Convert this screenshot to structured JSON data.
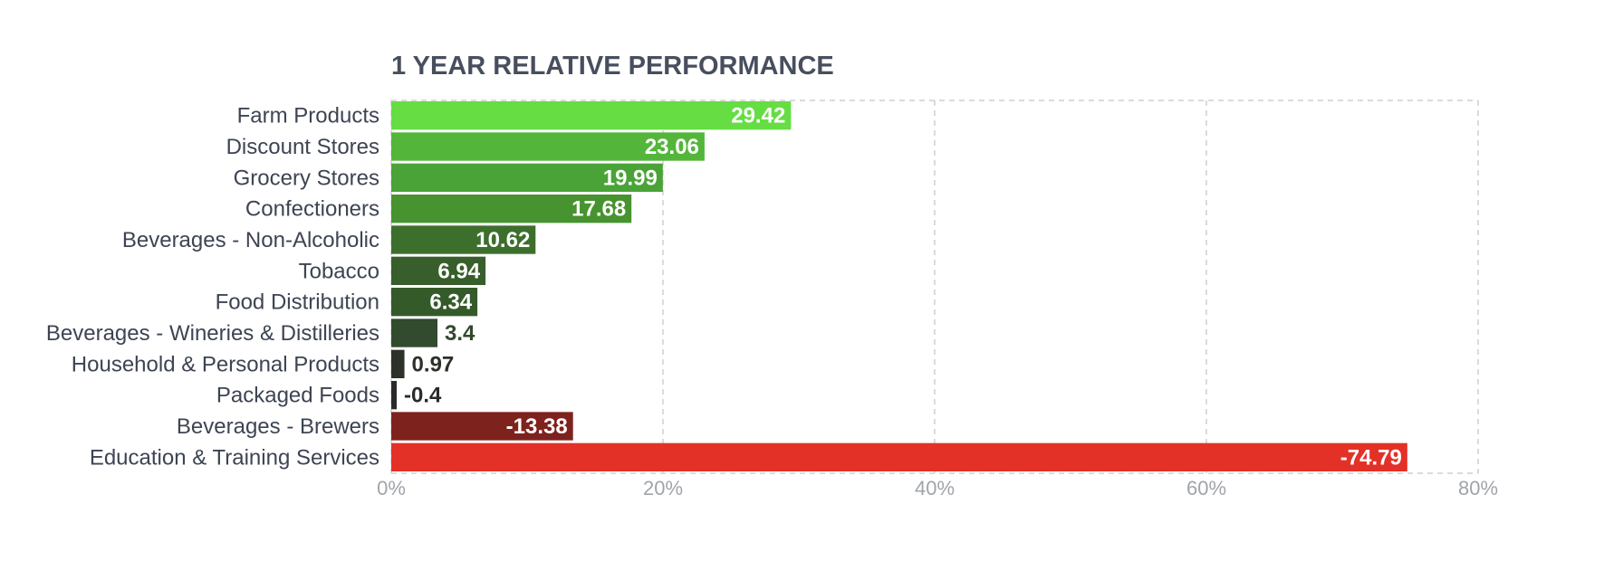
{
  "chart_data": {
    "type": "bar",
    "orientation": "horizontal",
    "title": "1 YEAR RELATIVE PERFORMANCE",
    "xlabel": "",
    "ylabel": "",
    "categories": [
      "Farm Products",
      "Discount Stores",
      "Grocery Stores",
      "Confectioners",
      "Beverages - Non-Alcoholic",
      "Tobacco",
      "Food Distribution",
      "Beverages - Wineries & Distilleries",
      "Household & Personal Products",
      "Packaged Foods",
      "Beverages - Brewers",
      "Education & Training Services"
    ],
    "values": [
      29.42,
      23.06,
      19.99,
      17.68,
      10.62,
      6.94,
      6.34,
      3.4,
      0.97,
      -0.4,
      -13.38,
      -74.79
    ],
    "value_labels": [
      "29.42",
      "23.06",
      "19.99",
      "17.68",
      "10.62",
      "6.94",
      "6.34",
      "3.4",
      "0.97",
      "-0.4",
      "-13.38",
      "-74.79"
    ],
    "bar_colors": [
      "#65dd43",
      "#53b63a",
      "#4aa337",
      "#47932f",
      "#3d6f2c",
      "#375e2b",
      "#355a2a",
      "#324a2d",
      "#2c3129",
      "#2a2a2a",
      "#7e221e",
      "#e33127"
    ],
    "bar_length": "absolute value",
    "xlim": [
      0,
      80
    ],
    "x_ticks": [
      "0%",
      "20%",
      "40%",
      "60%",
      "80%"
    ],
    "x_tick_values": [
      0,
      20,
      40,
      60,
      80
    ],
    "grid": true
  }
}
